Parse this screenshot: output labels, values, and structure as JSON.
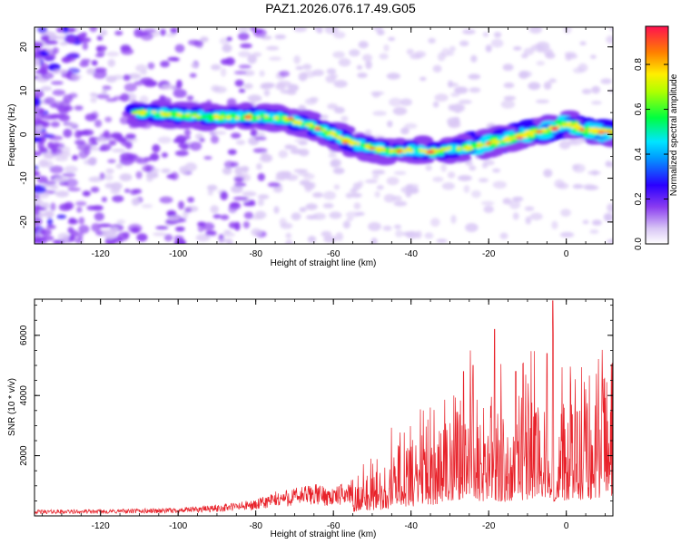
{
  "page_title": "PAZ1.2026.076.17.49.G05",
  "colors": {
    "snr_line": "#e8222a",
    "colormap": [
      "#ffffff",
      "#d9c7f5",
      "#8a3cf0",
      "#2a00ff",
      "#00e5ff",
      "#00ff40",
      "#ffee00",
      "#ff7f00",
      "#ff1050"
    ]
  },
  "chart_data": [
    {
      "type": "heatmap",
      "title": "",
      "xlabel": "Height of straight line (km)",
      "ylabel": "Frequency (Hz)",
      "xlim": [
        -137,
        12
      ],
      "ylim": [
        -25,
        24.5
      ],
      "xticks": [
        -120,
        -100,
        -80,
        -60,
        -40,
        -20,
        0
      ],
      "yticks": [
        -20,
        -10,
        0,
        10,
        20
      ],
      "ridge": {
        "x": [
          -110,
          -100,
          -92,
          -85,
          -78,
          -72,
          -66,
          -60,
          -55,
          -50,
          -45,
          -40,
          -35,
          -30,
          -25,
          -20,
          -15,
          -10,
          -5,
          0,
          5,
          10,
          12
        ],
        "y": [
          5,
          4.5,
          4,
          4,
          4,
          3.5,
          2,
          0,
          -2,
          -3,
          -4,
          -3.5,
          -4,
          -3.5,
          -3,
          -2,
          -1,
          0,
          1,
          2.5,
          1,
          0.5,
          0.5
        ]
      },
      "colorbar": {
        "label": "Normalized spectral amplitude",
        "range": [
          0,
          0.97
        ],
        "ticks": [
          0.0,
          0.2,
          0.4,
          0.6,
          0.8
        ],
        "tick_labels": [
          "0.0",
          "0.2",
          "0.4",
          "0.6",
          "0.8"
        ]
      }
    },
    {
      "type": "line",
      "title": "",
      "xlabel": "Height of straight line (km)",
      "ylabel": "SNR (10 * v/v)",
      "xlim": [
        -137,
        12
      ],
      "ylim": [
        0,
        7200
      ],
      "xticks": [
        -120,
        -100,
        -80,
        -60,
        -40,
        -20,
        0
      ],
      "yticks": [
        2000,
        4000,
        6000
      ],
      "envelope": {
        "x": [
          -137,
          -120,
          -100,
          -90,
          -80,
          -75,
          -70,
          -65,
          -60,
          -55,
          -50,
          -47,
          -45,
          -42,
          -40,
          -37,
          -35,
          -32,
          -30,
          -28,
          -26,
          -24,
          -22,
          -20,
          -18,
          -16,
          -14,
          -12,
          -10,
          -8,
          -6,
          -4,
          -2,
          0,
          2,
          4,
          6,
          8,
          10,
          12
        ],
        "y": [
          150,
          160,
          200,
          280,
          400,
          600,
          700,
          800,
          700,
          900,
          1200,
          1400,
          1600,
          1800,
          2000,
          2300,
          2400,
          2700,
          2800,
          2900,
          3100,
          3200,
          3000,
          2600,
          2800,
          3100,
          3400,
          3500,
          3300,
          3200,
          3300,
          3500,
          3300,
          3200,
          3300,
          3400,
          3500,
          3700,
          4000,
          4300
        ]
      },
      "spikes": [
        {
          "x": -18.5,
          "y": 6200
        },
        {
          "x": -3.5,
          "y": 7150
        },
        {
          "x": -24,
          "y": 5000
        },
        {
          "x": -26.5,
          "y": 4800
        },
        {
          "x": -13,
          "y": 4800
        },
        {
          "x": -5,
          "y": 5400
        }
      ]
    }
  ]
}
